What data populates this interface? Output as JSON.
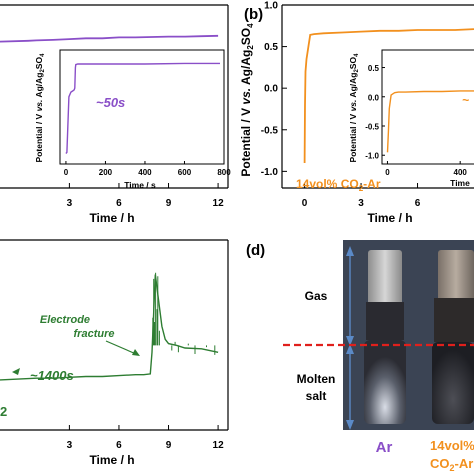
{
  "panel_labels": {
    "b": "(b)",
    "d": "(d)"
  },
  "chart_data": [
    {
      "id": "panel-a-main",
      "type": "line",
      "xlabel": "Time / h",
      "xticks": [
        "3",
        "6",
        "9",
        "12"
      ],
      "xlim": [
        -1.2,
        12.6
      ],
      "ylim": [
        -1.2,
        1.0
      ],
      "series": [
        {
          "color": "#8a4fc8",
          "x": [
            -1.2,
            0.5,
            1,
            2,
            3,
            4,
            5,
            6,
            7,
            8,
            9,
            10,
            11,
            12
          ],
          "y": [
            0.56,
            0.57,
            0.575,
            0.58,
            0.59,
            0.6,
            0.6,
            0.61,
            0.61,
            0.615,
            0.62,
            0.62,
            0.625,
            0.63
          ]
        }
      ],
      "annotations": []
    },
    {
      "id": "panel-a-inset",
      "type": "line",
      "ylabel": "Potential / V vs. Ag/Ag2SO4",
      "xlabel": "Time / s",
      "xticks": [
        "0",
        "200",
        "400",
        "600",
        "800"
      ],
      "yticks": [
        "0.5",
        "0.0",
        "-0.5",
        "-1.0"
      ],
      "xlim": [
        -30,
        800
      ],
      "ylim": [
        -1.15,
        0.8
      ],
      "series": [
        {
          "color": "#8a4fc8",
          "x": [
            0,
            5,
            15,
            25,
            35,
            42,
            45,
            48,
            50,
            60,
            100,
            200,
            400,
            600,
            780
          ],
          "y": [
            -0.97,
            -0.95,
            0.0,
            0.08,
            0.1,
            0.12,
            0.15,
            0.5,
            0.55,
            0.56,
            0.56,
            0.56,
            0.56,
            0.57,
            0.57
          ]
        }
      ],
      "annotations": [
        {
          "text": "~50s",
          "color": "#8a4fc8"
        }
      ]
    },
    {
      "id": "panel-b-main",
      "type": "line",
      "ylabel": "Potential / V vs. Ag/Ag2SO4",
      "xlabel": "Time / h",
      "xticks": [
        "0",
        "3",
        "6"
      ],
      "yticks": [
        "1.0",
        "0.5",
        "0.0",
        "-0.5",
        "-1.0"
      ],
      "xlim": [
        -1.2,
        9.0
      ],
      "ylim": [
        -1.2,
        1.0
      ],
      "series": [
        {
          "color": "#f2901e",
          "x": [
            0,
            0.02,
            0.05,
            0.1,
            0.2,
            0.3,
            0.5,
            1,
            2,
            3,
            4,
            5,
            6,
            7,
            8,
            9
          ],
          "y": [
            -0.9,
            -0.2,
            0.2,
            0.35,
            0.5,
            0.64,
            0.65,
            0.66,
            0.67,
            0.68,
            0.69,
            0.69,
            0.7,
            0.7,
            0.7,
            0.71
          ]
        }
      ],
      "annotations": [
        {
          "text": "14vol% CO2-Ar",
          "color": "#f2901e"
        }
      ]
    },
    {
      "id": "panel-b-inset",
      "type": "line",
      "ylabel": "Potential / V vs. Ag/Ag2SO4",
      "xlabel": "Time",
      "xticks": [
        "0",
        "400"
      ],
      "yticks": [
        "0.5",
        "0.0",
        "-0.5",
        "-1.0"
      ],
      "xlim": [
        -30,
        520
      ],
      "ylim": [
        -1.15,
        0.8
      ],
      "series": [
        {
          "color": "#f2901e",
          "x": [
            0,
            5,
            10,
            20,
            30,
            40,
            60,
            100,
            200,
            300,
            400,
            500
          ],
          "y": [
            -0.95,
            -0.6,
            -0.2,
            0.03,
            0.05,
            0.07,
            0.08,
            0.08,
            0.09,
            0.09,
            0.1,
            0.1
          ]
        }
      ],
      "annotations": [
        {
          "text": "~",
          "color": "#f2901e"
        }
      ]
    },
    {
      "id": "panel-c-main",
      "type": "line",
      "xlabel": "Time / h",
      "xticks": [
        "3",
        "6",
        "9",
        "12"
      ],
      "xlim": [
        -1.2,
        12.6
      ],
      "ylim": [
        -1.2,
        1.0
      ],
      "series": [
        {
          "color": "#2e7d32",
          "x": [
            -1.2,
            1,
            2,
            3,
            4,
            5,
            6,
            7,
            7.5,
            7.9,
            8.0,
            8.2,
            8.4,
            8.6,
            8.8,
            9.0,
            9.5,
            10,
            11,
            12
          ],
          "y": [
            -0.62,
            -0.6,
            -0.6,
            -0.59,
            -0.58,
            -0.58,
            -0.57,
            -0.56,
            -0.56,
            -0.55,
            -0.3,
            0.6,
            0.3,
            0.0,
            -0.15,
            -0.2,
            -0.22,
            -0.25,
            -0.26,
            -0.3
          ]
        }
      ],
      "annotations": [
        {
          "text": "Electrode",
          "color": "#2e7d32"
        },
        {
          "text": "fracture",
          "color": "#2e7d32"
        },
        {
          "text": "~1400s",
          "color": "#2e7d32"
        },
        {
          "text": "2",
          "color": "#2e7d32"
        }
      ]
    }
  ],
  "photo": {
    "labels": {
      "gas": "Gas",
      "molten_1": "Molten",
      "molten_2": "salt"
    },
    "captions": {
      "ar": "Ar",
      "co2_1": "14vol%",
      "co2_2": "CO2-Ar"
    },
    "colors": {
      "ar": "#8a4fc8",
      "co2": "#f2901e",
      "dash": "#e0201c",
      "arrow": "#5b8ac7"
    }
  }
}
